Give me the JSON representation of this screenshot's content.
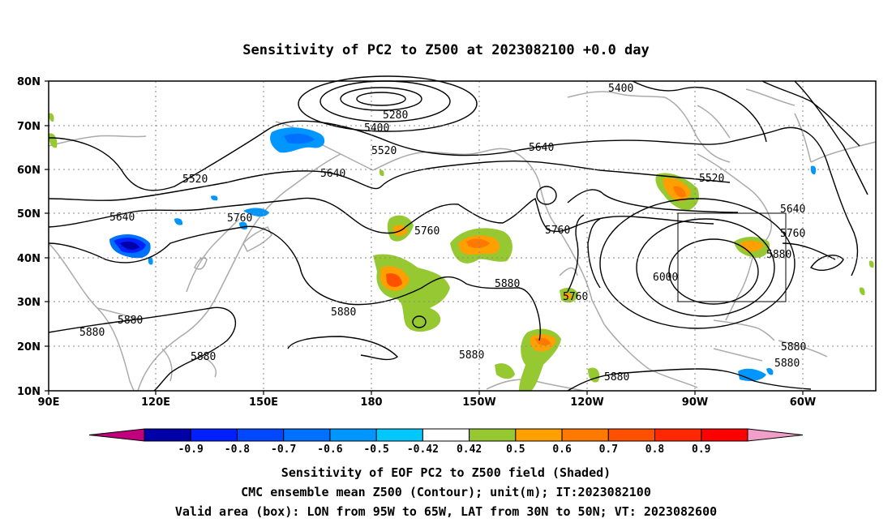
{
  "title": "Sensitivity of PC2 to Z500 at 2023082100 +0.0 day",
  "axes": {
    "y_ticks": [
      "80N",
      "70N",
      "60N",
      "50N",
      "40N",
      "30N",
      "20N",
      "10N"
    ],
    "x_ticks": [
      "90E",
      "120E",
      "150E",
      "180",
      "150W",
      "120W",
      "90W",
      "60W"
    ]
  },
  "contour_labels": [
    "5280",
    "5400",
    "5400",
    "5520",
    "5520",
    "5520",
    "5640",
    "5640",
    "5640",
    "5640",
    "5760",
    "5760",
    "5760",
    "5760",
    "5760",
    "5880",
    "5880",
    "5880",
    "5880",
    "5880",
    "5880",
    "5880",
    "5880",
    "5880",
    "6000"
  ],
  "colorbar": {
    "labels": [
      "-0.9",
      "-0.8",
      "-0.7",
      "-0.6",
      "-0.5",
      "-0.42",
      "0.42",
      "0.5",
      "0.6",
      "0.7",
      "0.8",
      "0.9"
    ],
    "colors": [
      "#c0007d",
      "#0000a8",
      "#0020ff",
      "#0048ff",
      "#0070ff",
      "#0096ff",
      "#00c8ff",
      "#ffffff",
      "#96c832",
      "#ffa000",
      "#ff7800",
      "#ff5000",
      "#ff2800",
      "#ff0000",
      "#f0a0c8"
    ]
  },
  "captions": {
    "line1": "Sensitivity of EOF PC2 to Z500 field (Shaded)",
    "line2": "CMC ensemble mean Z500 (Contour); unit(m); IT:2023082100",
    "line3": "Valid area (box): LON from 95W to 65W, LAT from 30N to 50N; VT: 2023082600"
  },
  "map": {
    "lon_range": [
      "90E",
      "40W"
    ],
    "lat_range": [
      "10N",
      "80N"
    ],
    "valid_box": {
      "lon": [
        "95W",
        "65W"
      ],
      "lat": [
        "30N",
        "50N"
      ]
    }
  }
}
